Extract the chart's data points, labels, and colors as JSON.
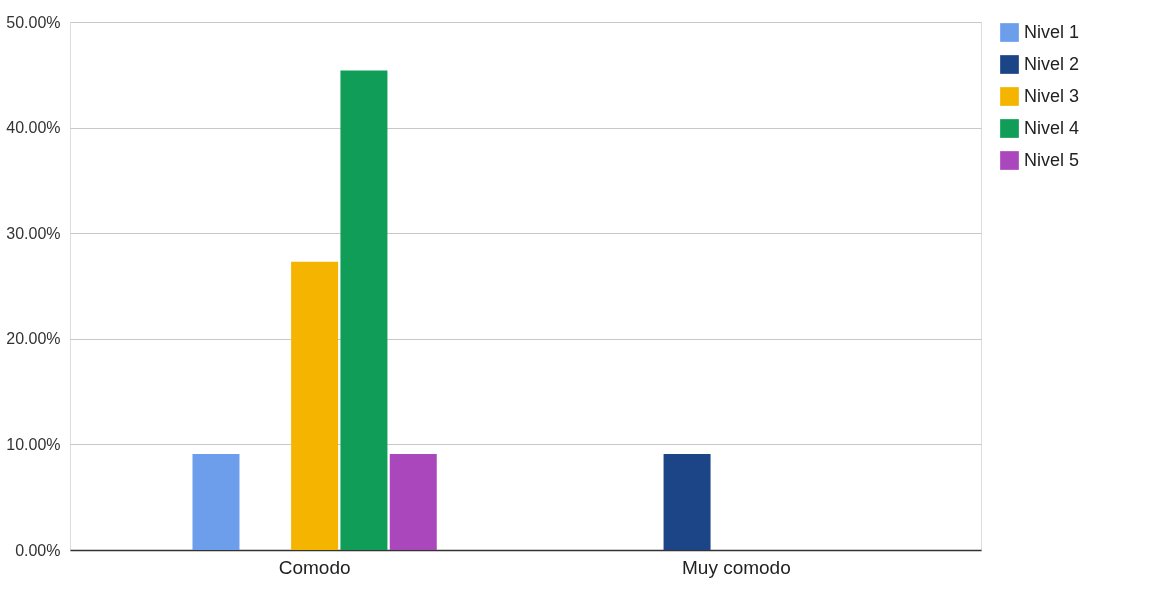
{
  "chart_data": {
    "type": "bar",
    "categories": [
      "Comodo",
      "Muy comodo"
    ],
    "series": [
      {
        "name": "Nivel 1",
        "color": "#6d9eeb",
        "values": [
          9.1,
          null
        ]
      },
      {
        "name": "Nivel 2",
        "color": "#1c4587",
        "values": [
          null,
          9.1
        ]
      },
      {
        "name": "Nivel 3",
        "color": "#f4b400",
        "values": [
          27.3,
          null
        ]
      },
      {
        "name": "Nivel 4",
        "color": "#0f9d58",
        "values": [
          45.4,
          null
        ]
      },
      {
        "name": "Nivel 5",
        "color": "#ab47bc",
        "values": [
          9.1,
          null
        ]
      }
    ],
    "ylim": [
      0,
      50
    ],
    "yticks": [
      {
        "value": 0,
        "label": "0.00%"
      },
      {
        "value": 10,
        "label": "10.00%"
      },
      {
        "value": 20,
        "label": "20.00%"
      },
      {
        "value": 30,
        "label": "30.00%"
      },
      {
        "value": 40,
        "label": "40.00%"
      },
      {
        "value": 50,
        "label": "50.00%"
      }
    ],
    "grid": "y",
    "legend": "top right"
  }
}
